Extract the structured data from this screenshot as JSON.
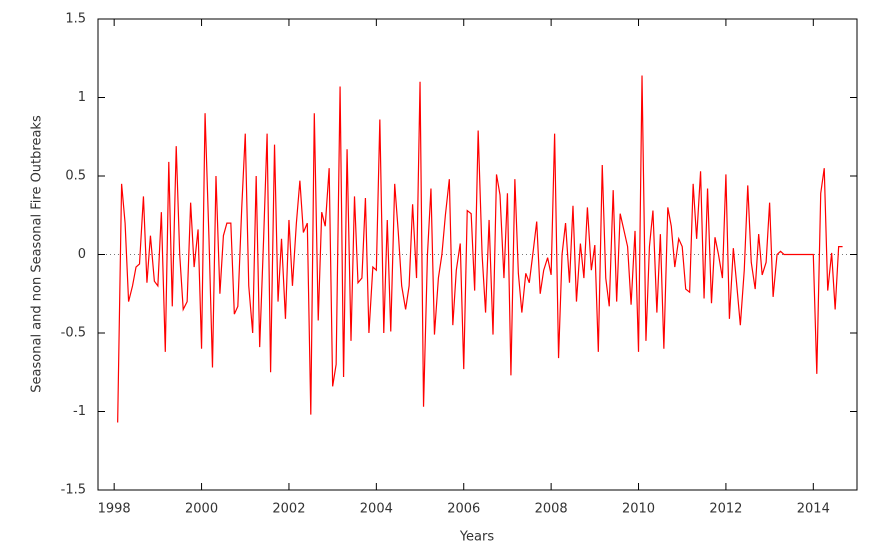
{
  "chart_data": {
    "type": "line",
    "x_label": "Years",
    "y_label": "Seasonal and non Seasonal Fire Outbreaks",
    "xlim": [
      1997.63,
      2015.0
    ],
    "ylim": [
      -1.5,
      1.5
    ],
    "xticks": [
      1998,
      2000,
      2002,
      2004,
      2006,
      2008,
      2010,
      2012,
      2014
    ],
    "yticks": [
      -1.5,
      -1,
      -0.5,
      0,
      0.5,
      1,
      1.5
    ],
    "zero_line": true,
    "x": [
      1998.08,
      1998.17,
      1998.25,
      1998.33,
      1998.42,
      1998.5,
      1998.58,
      1998.67,
      1998.75,
      1998.83,
      1998.92,
      1999.0,
      1999.08,
      1999.17,
      1999.25,
      1999.33,
      1999.42,
      1999.5,
      1999.58,
      1999.67,
      1999.75,
      1999.83,
      1999.92,
      2000.0,
      2000.08,
      2000.17,
      2000.25,
      2000.33,
      2000.42,
      2000.5,
      2000.58,
      2000.67,
      2000.75,
      2000.83,
      2000.92,
      2001.0,
      2001.08,
      2001.17,
      2001.25,
      2001.33,
      2001.42,
      2001.5,
      2001.58,
      2001.67,
      2001.75,
      2001.83,
      2001.92,
      2002.0,
      2002.08,
      2002.17,
      2002.25,
      2002.33,
      2002.42,
      2002.5,
      2002.58,
      2002.67,
      2002.75,
      2002.83,
      2002.92,
      2003.0,
      2003.08,
      2003.17,
      2003.25,
      2003.33,
      2003.42,
      2003.5,
      2003.58,
      2003.67,
      2003.75,
      2003.83,
      2003.92,
      2004.0,
      2004.08,
      2004.17,
      2004.25,
      2004.33,
      2004.42,
      2004.5,
      2004.58,
      2004.67,
      2004.75,
      2004.83,
      2004.92,
      2005.0,
      2005.08,
      2005.17,
      2005.25,
      2005.33,
      2005.42,
      2005.5,
      2005.58,
      2005.67,
      2005.75,
      2005.83,
      2005.92,
      2006.0,
      2006.08,
      2006.17,
      2006.25,
      2006.33,
      2006.42,
      2006.5,
      2006.58,
      2006.67,
      2006.75,
      2006.83,
      2006.92,
      2007.0,
      2007.08,
      2007.17,
      2007.25,
      2007.33,
      2007.42,
      2007.5,
      2007.58,
      2007.67,
      2007.75,
      2007.83,
      2007.92,
      2008.0,
      2008.08,
      2008.17,
      2008.25,
      2008.33,
      2008.42,
      2008.5,
      2008.58,
      2008.67,
      2008.75,
      2008.83,
      2008.92,
      2009.0,
      2009.08,
      2009.17,
      2009.25,
      2009.33,
      2009.42,
      2009.5,
      2009.58,
      2009.67,
      2009.75,
      2009.83,
      2009.92,
      2010.0,
      2010.08,
      2010.17,
      2010.25,
      2010.33,
      2010.42,
      2010.5,
      2010.58,
      2010.67,
      2010.75,
      2010.83,
      2010.92,
      2011.0,
      2011.08,
      2011.17,
      2011.25,
      2011.33,
      2011.42,
      2011.5,
      2011.58,
      2011.67,
      2011.75,
      2011.83,
      2011.92,
      2012.0,
      2012.08,
      2012.17,
      2012.25,
      2012.33,
      2012.42,
      2012.5,
      2012.58,
      2012.67,
      2012.75,
      2012.83,
      2012.92,
      2013.0,
      2013.08,
      2013.17,
      2013.25,
      2013.33,
      2013.42,
      2013.5,
      2013.58,
      2013.67,
      2013.75,
      2013.83,
      2013.92,
      2014.0,
      2014.08,
      2014.17,
      2014.25,
      2014.33,
      2014.42,
      2014.5,
      2014.58,
      2014.67
    ],
    "series": [
      {
        "color": "#ff0000",
        "values": [
          -1.07,
          0.45,
          0.2,
          -0.3,
          -0.2,
          -0.08,
          -0.06,
          0.37,
          -0.18,
          0.12,
          -0.17,
          -0.2,
          0.27,
          -0.62,
          0.59,
          -0.33,
          0.69,
          0.0,
          -0.35,
          -0.3,
          0.33,
          -0.08,
          0.16,
          -0.6,
          0.9,
          0.1,
          -0.72,
          0.5,
          -0.25,
          0.12,
          0.2,
          0.2,
          -0.38,
          -0.33,
          0.3,
          0.77,
          -0.2,
          -0.5,
          0.5,
          -0.59,
          0.1,
          0.77,
          -0.75,
          0.7,
          -0.3,
          0.1,
          -0.41,
          0.22,
          -0.2,
          0.2,
          0.47,
          0.14,
          0.2,
          -1.02,
          0.9,
          -0.42,
          0.27,
          0.18,
          0.55,
          -0.84,
          -0.7,
          1.07,
          -0.78,
          0.67,
          -0.55,
          0.37,
          -0.18,
          -0.15,
          0.36,
          -0.5,
          -0.08,
          -0.1,
          0.86,
          -0.5,
          0.22,
          -0.49,
          0.45,
          0.15,
          -0.2,
          -0.35,
          -0.2,
          0.32,
          -0.15,
          1.1,
          -0.97,
          0.0,
          0.42,
          -0.51,
          -0.15,
          0.0,
          0.25,
          0.48,
          -0.45,
          -0.1,
          0.07,
          -0.73,
          0.28,
          0.26,
          -0.23,
          0.79,
          0.0,
          -0.37,
          0.22,
          -0.51,
          0.51,
          0.38,
          -0.15,
          0.39,
          -0.77,
          0.48,
          -0.12,
          -0.37,
          -0.12,
          -0.18,
          0.0,
          0.21,
          -0.25,
          -0.1,
          -0.02,
          -0.13,
          0.77,
          -0.66,
          0.0,
          0.2,
          -0.18,
          0.31,
          -0.3,
          0.07,
          -0.15,
          0.3,
          -0.1,
          0.06,
          -0.62,
          0.57,
          -0.15,
          -0.33,
          0.41,
          -0.3,
          0.26,
          0.15,
          0.05,
          -0.32,
          0.15,
          -0.62,
          1.14,
          -0.55,
          0.05,
          0.28,
          -0.37,
          0.13,
          -0.6,
          0.3,
          0.18,
          -0.08,
          0.1,
          0.05,
          -0.22,
          -0.24,
          0.45,
          0.1,
          0.53,
          -0.28,
          0.42,
          -0.31,
          0.11,
          0.0,
          -0.15,
          0.51,
          -0.41,
          0.04,
          -0.2,
          -0.45,
          -0.1,
          0.44,
          -0.05,
          -0.22,
          0.13,
          -0.13,
          -0.05,
          0.33,
          -0.27,
          0.0,
          0.02,
          0.0,
          0.0,
          0.0,
          0.0,
          0.0,
          0.0,
          0.0,
          0.0,
          0.0,
          -0.76,
          0.39,
          0.55,
          -0.23,
          0.01,
          -0.35,
          0.05,
          0.05
        ]
      }
    ]
  }
}
